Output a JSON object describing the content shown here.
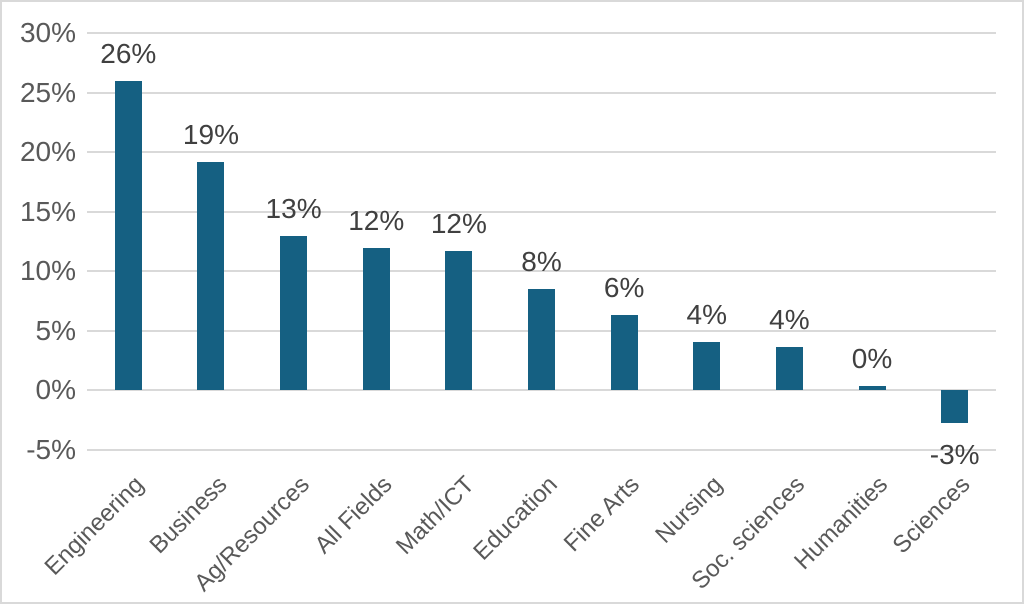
{
  "chart_data": {
    "type": "bar",
    "title": "",
    "xlabel": "",
    "ylabel": "",
    "categories": [
      "Engineering",
      "Business",
      "Ag/Resources",
      "All Fields",
      "Math/ICT",
      "Education",
      "Fine Arts",
      "Nursing",
      "Soc. sciences",
      "Humanities",
      "Sciences"
    ],
    "values": [
      26.0,
      19.2,
      12.9,
      11.9,
      11.7,
      8.5,
      6.3,
      4.0,
      3.6,
      0.3,
      -2.8
    ],
    "data_labels": [
      "26%",
      "19%",
      "13%",
      "12%",
      "12%",
      "8%",
      "6%",
      "4%",
      "4%",
      "0%",
      "-3%"
    ],
    "ylim": [
      -5,
      30
    ],
    "ytick_step": 5,
    "ytick_labels": [
      "30%",
      "25%",
      "20%",
      "15%",
      "10%",
      "5%",
      "0%",
      "-5%"
    ],
    "grid": true,
    "legend": false,
    "category_label_rotation_deg": -45,
    "colors": {
      "bar": "#156082",
      "gridline": "#d9d9d9",
      "frame_border": "#d9d9d9",
      "tick_label": "#595959",
      "category_label": "#595959",
      "data_label": "#404040",
      "background": "#ffffff"
    }
  }
}
